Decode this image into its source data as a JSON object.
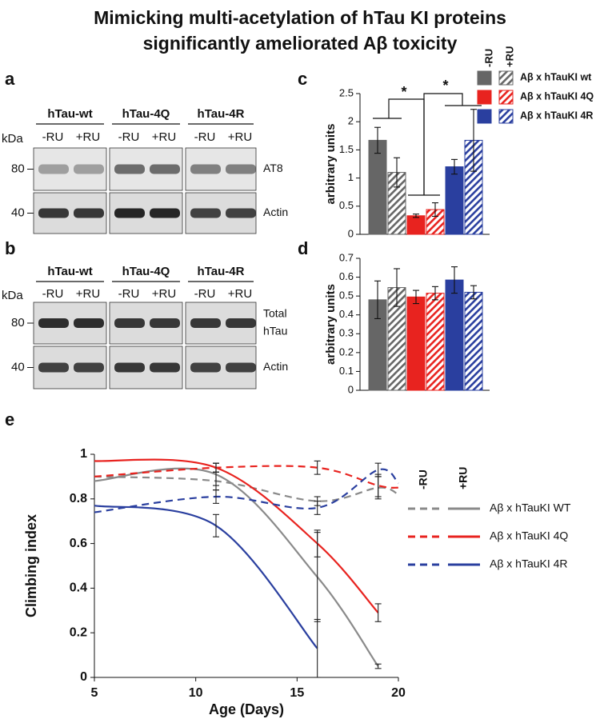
{
  "title": [
    "Mimicking multi-acetylation of hTau KI proteins",
    "significantly ameliorated Aβ toxicity"
  ],
  "blots": [
    {
      "label": "a",
      "groups": [
        "hTau-wt",
        "hTau-4Q",
        "hTau-4R"
      ],
      "group_colors": [
        "#8c8c8c",
        "#f07070",
        "#2e8ae6"
      ],
      "lanes": [
        "-RU",
        "+RU"
      ],
      "unit": "kDa",
      "rows": [
        {
          "marker": "80",
          "name": [
            "AT8"
          ]
        },
        {
          "marker": "40",
          "name": [
            "Actin"
          ]
        }
      ]
    },
    {
      "label": "b",
      "groups": [
        "hTau-wt",
        "hTau-4Q",
        "hTau-4R"
      ],
      "group_colors": [
        "#8c8c8c",
        "#f07070",
        "#2e8ae6"
      ],
      "lanes": [
        "-RU",
        "+RU"
      ],
      "unit": "kDa",
      "rows": [
        {
          "marker": "80",
          "name": [
            "Total",
            "hTau"
          ]
        },
        {
          "marker": "40",
          "name": [
            "Actin"
          ]
        }
      ]
    }
  ],
  "chart_data": [
    {
      "type": "bar",
      "label": "c",
      "y_label": "arbitrary units",
      "groups": [
        "-RU",
        "+RU"
      ],
      "fills": [
        "solid",
        "hatched"
      ],
      "series": [
        {
          "name": "Aβ x hTauKI wt",
          "color": "#666666",
          "values": [
            1.67,
            1.1
          ],
          "errors": [
            0.23,
            0.26
          ]
        },
        {
          "name": "Aβ x hTauKI 4Q",
          "color": "#e8231f",
          "values": [
            0.33,
            0.44
          ],
          "errors": [
            0.03,
            0.12
          ]
        },
        {
          "name": "Aβ x hTauKI 4R",
          "color": "#2a3f9f",
          "values": [
            1.2,
            1.67
          ],
          "errors": [
            0.13,
            0.55
          ]
        }
      ],
      "annotations": [
        "*",
        "*"
      ],
      "ylim": [
        0,
        2.5
      ],
      "yticks": [
        0,
        0.5,
        1,
        1.5,
        2,
        2.5
      ]
    },
    {
      "type": "bar",
      "label": "d",
      "y_label": "arbitrary units",
      "fills": [
        "solid",
        "hatched"
      ],
      "series": [
        {
          "color": "#666666",
          "values": [
            0.48,
            0.545
          ],
          "errors": [
            0.1,
            0.1
          ]
        },
        {
          "color": "#e8231f",
          "values": [
            0.495,
            0.515
          ],
          "errors": [
            0.035,
            0.035
          ]
        },
        {
          "color": "#2a3f9f",
          "values": [
            0.585,
            0.52
          ],
          "errors": [
            0.07,
            0.035
          ]
        }
      ],
      "ylim": [
        0,
        0.7
      ],
      "yticks": [
        0,
        0.1,
        0.2,
        0.3,
        0.4,
        0.5,
        0.6,
        0.7
      ]
    },
    {
      "type": "line",
      "label": "e",
      "x_label": "Age (Days)",
      "y_label": "Climbing index",
      "groups": [
        "-RU",
        "+RU"
      ],
      "line_styles": [
        "dashed",
        "solid"
      ],
      "x": [
        5,
        11,
        16,
        19,
        20
      ],
      "series": [
        {
          "name": "Aβ x hTauKI WT",
          "color": "#8a8a8a",
          "lines": [
            {
              "values": [
                0.9,
                0.88,
                0.79,
                0.85,
                0.82
              ],
              "errors": [
                null,
                0.04,
                0.02,
                0.05,
                null
              ]
            },
            {
              "values": [
                0.88,
                0.91,
                0.45,
                0.05,
                null
              ],
              "errors": [
                null,
                0.05,
                0.2,
                0.01,
                null
              ]
            }
          ]
        },
        {
          "name": "Aβ x hTauKI 4Q",
          "color": "#e8231f",
          "lines": [
            {
              "values": [
                0.9,
                0.94,
                0.94,
                0.86,
                0.85
              ],
              "errors": [
                null,
                0.02,
                0.03,
                0.05,
                null
              ]
            },
            {
              "values": [
                0.97,
                0.94,
                0.6,
                0.29,
                null
              ],
              "errors": [
                null,
                0.02,
                0.06,
                0.04,
                null
              ]
            }
          ]
        },
        {
          "name": "Aβ x hTauKI 4R",
          "color": "#2a3f9f",
          "lines": [
            {
              "values": [
                0.74,
                0.81,
                0.76,
                0.93,
                0.87
              ],
              "errors": [
                null,
                0.03,
                0.03,
                0.03,
                null
              ]
            },
            {
              "values": [
                0.77,
                0.68,
                0.13,
                null,
                null
              ],
              "errors": [
                null,
                0.05,
                0.13,
                null,
                null
              ]
            }
          ]
        }
      ],
      "xlim": [
        5,
        20
      ],
      "xticks": [
        5,
        10,
        15,
        20
      ],
      "ylim": [
        0,
        1
      ],
      "yticks": [
        0,
        0.2,
        0.4,
        0.6,
        0.8,
        1
      ]
    }
  ]
}
